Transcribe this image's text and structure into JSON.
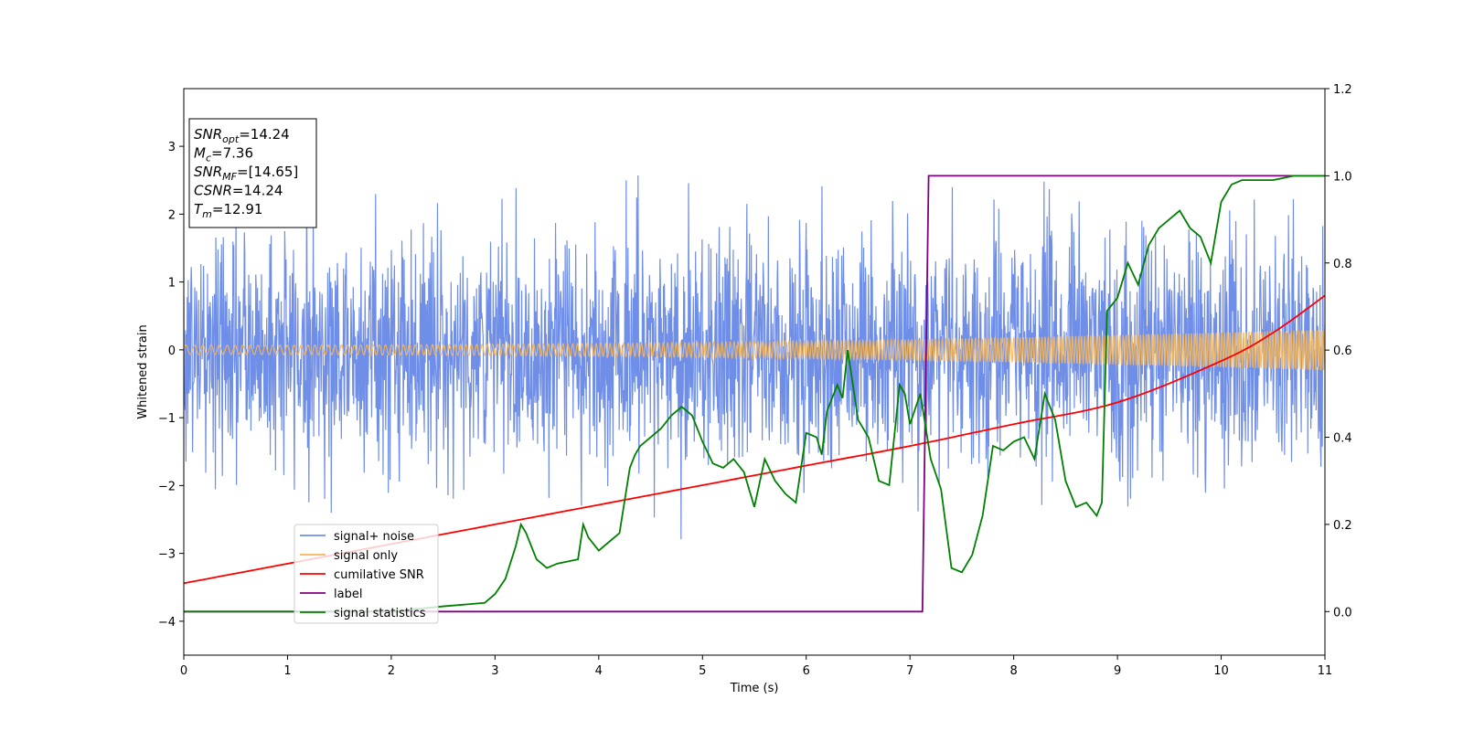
{
  "chart_data": {
    "type": "line",
    "title": "",
    "xlabel": "Time (s)",
    "ylabel": "Whitened strain",
    "xlim": [
      0,
      11
    ],
    "ylim": [
      -4.5,
      3.85
    ],
    "y2lim": [
      -0.1,
      1.2
    ],
    "x_ticks": [
      "0",
      "1",
      "2",
      "3",
      "4",
      "5",
      "6",
      "7",
      "8",
      "9",
      "10",
      "11"
    ],
    "y_ticks": [
      "3",
      "2",
      "1",
      "0",
      "−1",
      "−2",
      "−3",
      "−4"
    ],
    "y2_ticks": [
      "1.2",
      "1.0",
      "0.8",
      "0.6",
      "0.4",
      "0.2",
      "0.0"
    ],
    "grid": false,
    "legend_position": "lower-left",
    "info_box": [
      {
        "symbol": "SNR",
        "sub": "opt",
        "text": "=14.24"
      },
      {
        "symbol": "M",
        "sub": "c",
        "text": "=7.36"
      },
      {
        "symbol": "SNR",
        "sub": "MF",
        "text": "=[14.65]"
      },
      {
        "symbol": "CSNR",
        "sub": "",
        "text": "=14.24"
      },
      {
        "symbol": "T",
        "sub": "m",
        "text": "=12.91"
      }
    ],
    "series": [
      {
        "name": "signal+ noise",
        "color": "#6f8ee8",
        "axis": "left",
        "noise_std": 0.85,
        "range": [
          -4.2,
          3.3
        ]
      },
      {
        "name": "signal only",
        "color": "#f5b75a",
        "axis": "left",
        "amplitude_start": 0.07,
        "amplitude_end": 0.3
      },
      {
        "name": "cumilative SNR",
        "color": "#ff0000",
        "axis": "right",
        "x": [
          0,
          1,
          2,
          3,
          4,
          5,
          6,
          7,
          8,
          9,
          10,
          10.5,
          11
        ],
        "y": [
          0.065,
          0.11,
          0.155,
          0.2,
          0.245,
          0.29,
          0.335,
          0.38,
          0.43,
          0.48,
          0.575,
          0.64,
          0.725
        ]
      },
      {
        "name": "label",
        "color": "#800080",
        "axis": "right",
        "x": [
          0,
          7.12,
          7.18,
          11
        ],
        "y": [
          0,
          0,
          1,
          1
        ]
      },
      {
        "name": "signal statistics",
        "color": "#008000",
        "axis": "right",
        "x": [
          0,
          1,
          2,
          2.5,
          2.9,
          3.0,
          3.1,
          3.2,
          3.25,
          3.3,
          3.4,
          3.5,
          3.6,
          3.7,
          3.8,
          3.85,
          3.9,
          4.0,
          4.1,
          4.2,
          4.3,
          4.35,
          4.4,
          4.5,
          4.6,
          4.7,
          4.8,
          4.9,
          5.0,
          5.1,
          5.2,
          5.3,
          5.4,
          5.5,
          5.6,
          5.7,
          5.8,
          5.9,
          6.0,
          6.1,
          6.15,
          6.2,
          6.3,
          6.35,
          6.4,
          6.5,
          6.6,
          6.7,
          6.8,
          6.9,
          6.95,
          7.0,
          7.1,
          7.2,
          7.3,
          7.4,
          7.5,
          7.6,
          7.7,
          7.8,
          7.9,
          8.0,
          8.1,
          8.2,
          8.3,
          8.4,
          8.5,
          8.6,
          8.7,
          8.8,
          8.85,
          8.9,
          9.0,
          9.1,
          9.2,
          9.3,
          9.4,
          9.5,
          9.6,
          9.7,
          9.8,
          9.9,
          10.0,
          10.1,
          10.2,
          10.5,
          10.7,
          11
        ],
        "y": [
          0,
          0,
          0,
          0.012,
          0.02,
          0.04,
          0.075,
          0.15,
          0.2,
          0.18,
          0.12,
          0.1,
          0.11,
          0.115,
          0.12,
          0.2,
          0.17,
          0.14,
          0.16,
          0.18,
          0.33,
          0.36,
          0.38,
          0.4,
          0.42,
          0.45,
          0.47,
          0.45,
          0.39,
          0.34,
          0.33,
          0.35,
          0.32,
          0.24,
          0.35,
          0.3,
          0.27,
          0.25,
          0.41,
          0.4,
          0.36,
          0.46,
          0.52,
          0.49,
          0.6,
          0.44,
          0.4,
          0.3,
          0.29,
          0.52,
          0.5,
          0.43,
          0.5,
          0.35,
          0.28,
          0.1,
          0.09,
          0.13,
          0.22,
          0.38,
          0.37,
          0.39,
          0.4,
          0.35,
          0.5,
          0.44,
          0.3,
          0.24,
          0.25,
          0.22,
          0.25,
          0.69,
          0.72,
          0.8,
          0.75,
          0.84,
          0.88,
          0.9,
          0.92,
          0.88,
          0.86,
          0.8,
          0.94,
          0.98,
          0.99,
          0.99,
          1.0,
          1.0
        ]
      }
    ]
  }
}
